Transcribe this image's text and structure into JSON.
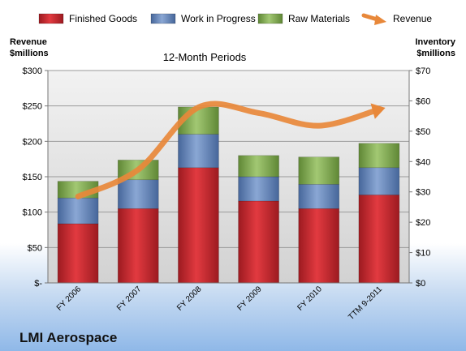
{
  "company": "LMI Aerospace",
  "chart_data": {
    "type": "bar",
    "stacked": true,
    "subtitle": "12-Month Periods",
    "left_axis_title": [
      "Revenue",
      "$millions"
    ],
    "right_axis_title": [
      "Inventory",
      "$millions"
    ],
    "categories": [
      "FY 2006",
      "FY 2007",
      "FY 2008",
      "FY 2009",
      "FY 2010",
      "TTM 9-2011"
    ],
    "series": [
      {
        "name": "Finished Goods",
        "axis": "right",
        "values": [
          19.5,
          24.5,
          38,
          27,
          24.5,
          29
        ],
        "color": "#c0202a"
      },
      {
        "name": "Work in Progress",
        "axis": "right",
        "values": [
          8.5,
          9.5,
          11,
          8,
          8,
          9
        ],
        "color": "#5b7fb8"
      },
      {
        "name": "Raw Materials",
        "axis": "right",
        "values": [
          5.5,
          6.5,
          9,
          7,
          9,
          8
        ],
        "color": "#7faa4a"
      }
    ],
    "line_series": {
      "name": "Revenue",
      "axis": "left",
      "values": [
        122,
        160,
        248,
        240,
        222,
        245
      ],
      "color": "#e8883a"
    },
    "left_axis": {
      "min": 0,
      "max": 300,
      "ticks": [
        "$-",
        "$50",
        "$100",
        "$150",
        "$200",
        "$250",
        "$300"
      ]
    },
    "right_axis": {
      "min": 0,
      "max": 70,
      "ticks": [
        "$0",
        "$10",
        "$20",
        "$30",
        "$40",
        "$50",
        "$60",
        "$70"
      ]
    }
  }
}
